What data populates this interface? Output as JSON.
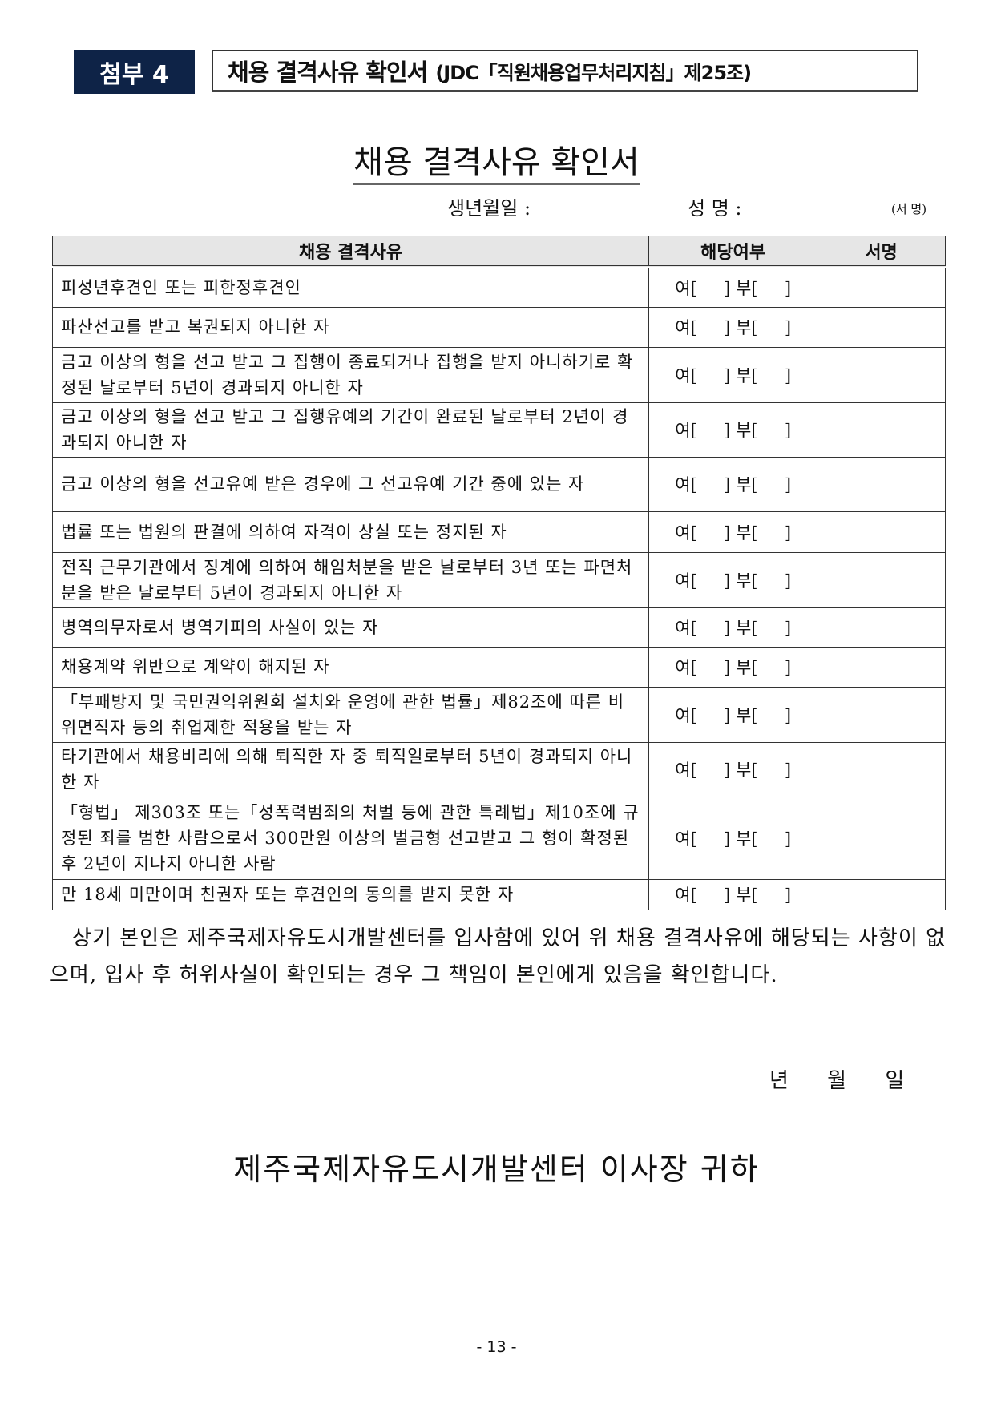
{
  "header": {
    "badge": "첨부 4",
    "title": "채용 결격사유 확인서",
    "subtitle": "(JDC「직원채용업무처리지침」제25조)"
  },
  "document": {
    "title": "채용 결격사유 확인서",
    "birth_label": "생년월일 :",
    "name_label": "성 명 :",
    "sign_hint": "(서   명)"
  },
  "table": {
    "headers": [
      "채용 결격사유",
      "해당여부",
      "서명"
    ],
    "checkbox_text": "여[     ] 부[     ]",
    "rows": [
      "피성년후견인 또는 피한정후견인",
      "파산선고를 받고 복권되지 아니한 자",
      "금고 이상의 형을 선고 받고 그 집행이 종료되거나 집행을 받지 아니하기로 확정된 날로부터 5년이 경과되지 아니한 자",
      "금고 이상의 형을 선고 받고 그 집행유예의 기간이 완료된 날로부터 2년이 경과되지 아니한 자",
      "금고 이상의 형을 선고유예 받은 경우에 그 선고유예 기간 중에 있는 자",
      "법률 또는 법원의 판결에 의하여 자격이 상실 또는 정지된 자",
      "전직 근무기관에서 징계에 의하여 해임처분을 받은 날로부터 3년 또는 파면처분을 받은 날로부터 5년이 경과되지 아니한 자",
      "병역의무자로서 병역기피의 사실이 있는 자",
      "채용계약 위반으로 계약이 해지된 자",
      "「부패방지 및 국민권익위원회 설치와 운영에 관한 법률」제82조에 따른 비위면직자 등의 취업제한 적용을 받는 자",
      "타기관에서 채용비리에 의해 퇴직한 자 중 퇴직일로부터 5년이 경과되지 아니한 자",
      "「형법」 제303조 또는「성폭력범죄의 처벌 등에 관한 특례법」제10조에 규정된 죄를 범한 사람으로서 300만원 이상의 벌금형 선고받고 그 형이 확정된 후 2년이 지나지 아니한 사람",
      "만 18세 미만이며 친권자 또는 후견인의 동의를 받지 못한 자"
    ]
  },
  "statement": "상기 본인은 제주국제자유도시개발센터를 입사함에 있어 위 채용 결격사유에 해당되는 사항이 없으며, 입사 후 허위사실이 확인되는 경우 그 책임이 본인에게 있음을 확인합니다.",
  "date_line": "년 월 일",
  "addressee": "제주국제자유도시개발센터 이사장 귀하",
  "page_number": "- 13 -"
}
